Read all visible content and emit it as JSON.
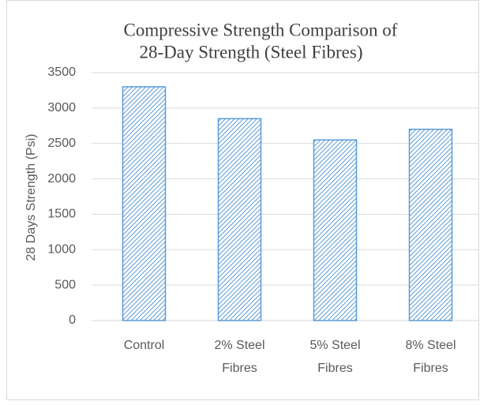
{
  "chart_data": {
    "type": "bar",
    "title": [
      "Compressive Strength Comparison of",
      "28-Day Strength (Steel Fibres)"
    ],
    "y_label": "28 Days Strength (Psi)",
    "categories": [
      "Control",
      "2% Steel Fibres",
      "5% Steel Fibres",
      "8% Steel Fibres"
    ],
    "values": [
      3300,
      2850,
      2550,
      2700
    ],
    "color": "#5b9bd5",
    "pattern": "diagonal-hatch",
    "ylim": [
      0,
      3500
    ],
    "yticks": [
      0,
      500,
      1000,
      1500,
      2000,
      2500,
      3000,
      3500
    ],
    "grid": true
  }
}
